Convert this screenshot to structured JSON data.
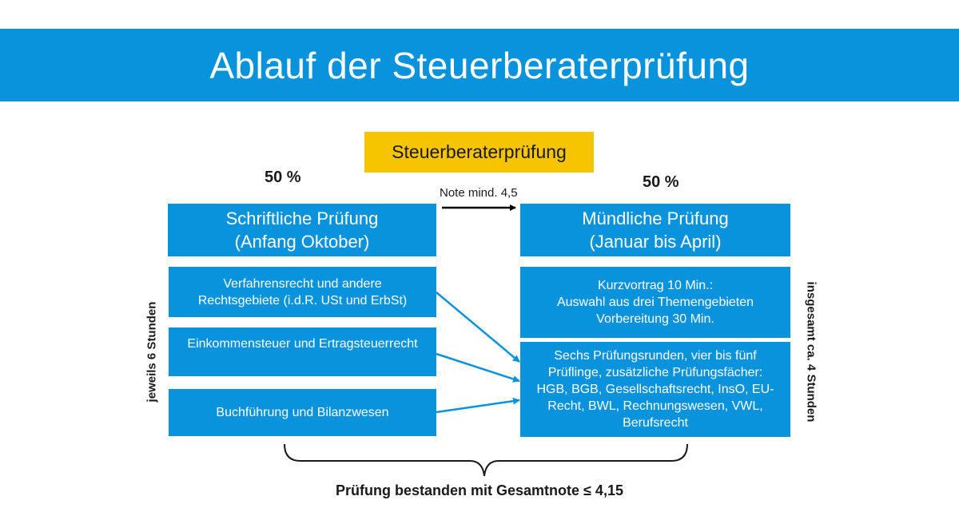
{
  "title": "Ablauf der Steuerberaterprüfung",
  "top_box": "Steuerberaterprüfung",
  "left": {
    "percent": "50 %",
    "header": [
      "Schriftliche Prüfung",
      "(Anfang Oktober)"
    ],
    "items": [
      [
        "Verfahrensrecht und andere",
        "Rechtsgebiete (i.d.R. USt und ErbSt)"
      ],
      [
        "Einkommensteuer und Ertragsteuerrecht"
      ],
      [
        "Buchführung und Bilanzwesen"
      ]
    ],
    "side_label": "jeweils 6 Stunden"
  },
  "right": {
    "percent": "50 %",
    "header": [
      "Mündliche Prüfung",
      "(Januar bis April)"
    ],
    "items": [
      [
        "Kurzvortrag 10 Min.:",
        "Auswahl aus drei Themengebieten",
        "Vorbereitung 30 Min."
      ],
      [
        "Sechs Prüfungsrunden, vier bis fünf",
        "Prüflinge, zusätzliche Prüfungsfächer:",
        "HGB, BGB, Gesellschaftsrecht, InsO, EU-",
        "Recht, BWL, Rechnungswesen, VWL,",
        "Berufsrecht"
      ]
    ],
    "side_label": "insgesamt ca. 4 Stunden"
  },
  "arrow_note": "Note mind. 4,5",
  "footer": "Prüfung bestanden mit Gesamtnote  ≤ 4,15",
  "colors": {
    "banner": "#0a93dd",
    "box": "#0a93dd",
    "highlight": "#f7c400",
    "arrow": "#0a93dd"
  }
}
